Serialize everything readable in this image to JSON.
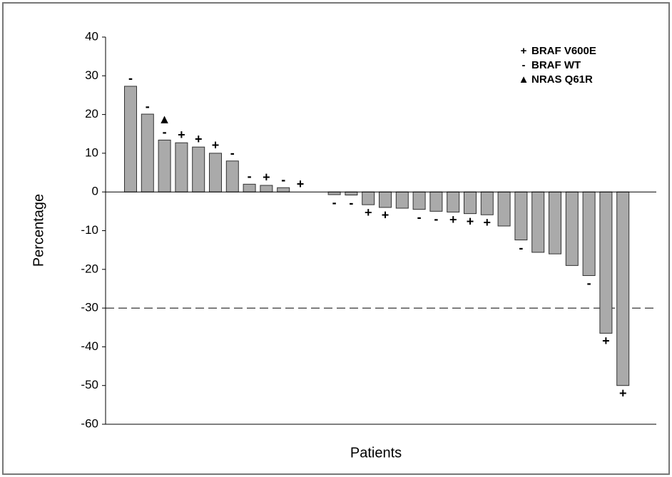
{
  "chart_data": {
    "type": "bar",
    "y_label": "Percentage",
    "x_label": "Patients",
    "values": [
      27.3,
      20.1,
      13.4,
      12.7,
      11.6,
      10,
      8,
      2,
      1.7,
      1.1,
      0,
      0,
      -0.7,
      -0.8,
      -3.3,
      -4,
      -4.2,
      -4.5,
      -5,
      -5.2,
      -5.6,
      -5.9,
      -8.8,
      -12.4,
      -15.6,
      -16,
      -19,
      -21.6,
      -36.5,
      -50
    ],
    "markers": [
      [
        "-"
      ],
      [
        "-"
      ],
      [
        "▲",
        "-"
      ],
      [
        "+"
      ],
      [
        "+"
      ],
      [
        "+"
      ],
      [
        "-"
      ],
      [
        "-"
      ],
      [
        "+"
      ],
      [
        "-"
      ],
      [
        "+"
      ],
      [],
      [
        "-"
      ],
      [
        "-"
      ],
      [
        "+"
      ],
      [
        "+"
      ],
      [],
      [
        "-"
      ],
      [
        "-"
      ],
      [
        "+"
      ],
      [
        "+"
      ],
      [
        "+"
      ],
      [],
      [
        "-"
      ],
      [],
      [],
      [],
      [
        "-"
      ],
      [
        "+"
      ],
      [
        "+"
      ]
    ],
    "color": "#aaaaaa",
    "ylim": [
      -60,
      40
    ],
    "yticks": [
      -60,
      -50,
      -40,
      -30,
      -20,
      -10,
      0,
      10,
      20,
      30,
      40
    ],
    "reference_line": -30,
    "legend": [
      {
        "symbol": "+",
        "label": "BRAF V600E"
      },
      {
        "symbol": "-",
        "label": "BRAF WT"
      },
      {
        "symbol": "▲",
        "label": "NRAS Q61R"
      }
    ]
  }
}
